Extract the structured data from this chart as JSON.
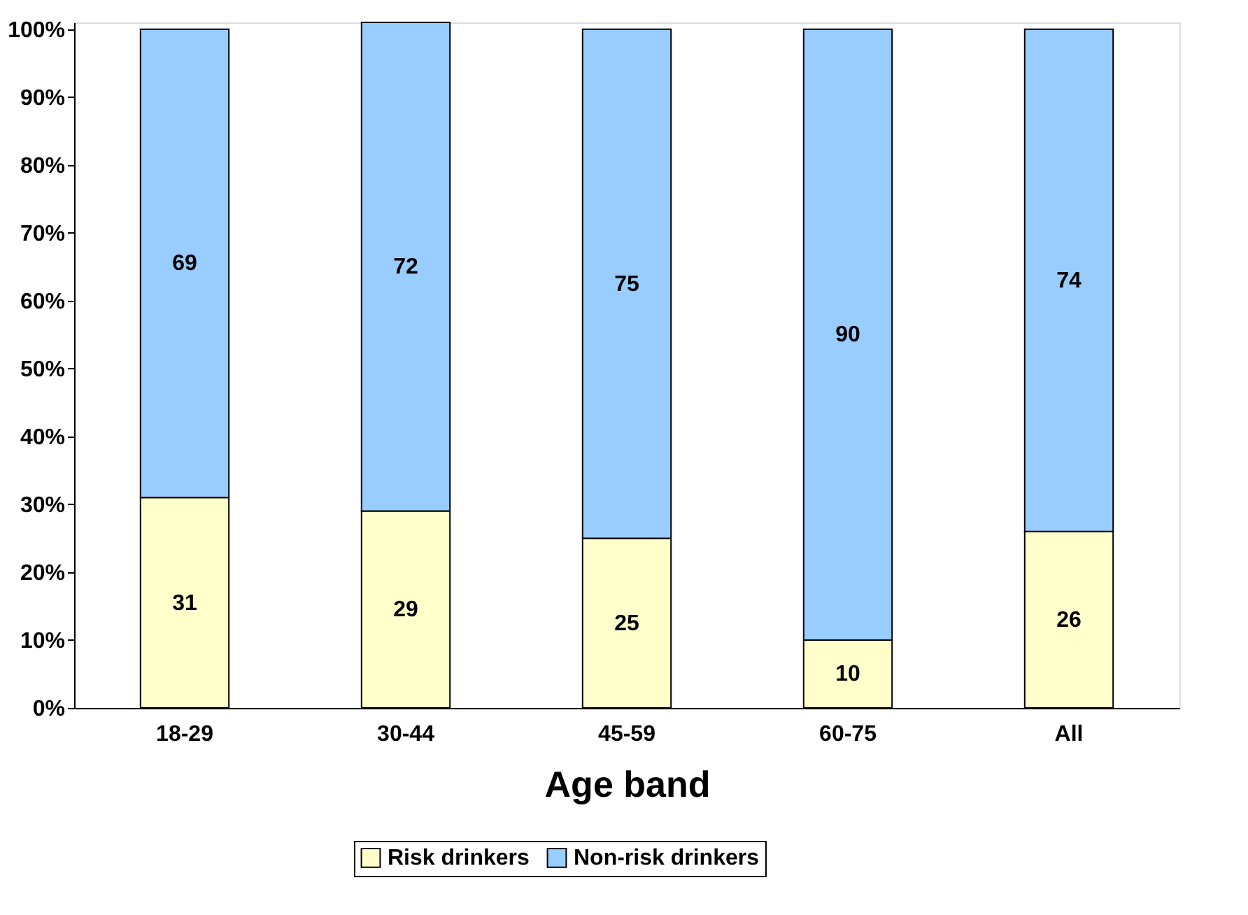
{
  "chart_data": {
    "type": "bar",
    "stacked": true,
    "xlabel": "Age band",
    "categories": [
      "18-29",
      "30-44",
      "45-59",
      "60-75",
      "All"
    ],
    "series": [
      {
        "name": "Risk drinkers",
        "color": "#ffffcc",
        "values": [
          31,
          29,
          25,
          10,
          26
        ]
      },
      {
        "name": "Non-risk drinkers",
        "color": "#99ccff",
        "values": [
          69,
          72,
          75,
          90,
          74
        ]
      }
    ],
    "ylim": [
      0,
      101
    ],
    "yticks": [
      {
        "value": 0,
        "label": "0%"
      },
      {
        "value": 10,
        "label": "10%"
      },
      {
        "value": 20,
        "label": "20%"
      },
      {
        "value": 30,
        "label": "30%"
      },
      {
        "value": 40,
        "label": "40%"
      },
      {
        "value": 50,
        "label": "50%"
      },
      {
        "value": 60,
        "label": "60%"
      },
      {
        "value": 70,
        "label": "70%"
      },
      {
        "value": 80,
        "label": "80%"
      },
      {
        "value": 90,
        "label": "90%"
      },
      {
        "value": 100,
        "label": "100%"
      }
    ],
    "data_labels": true,
    "legend": "bottom",
    "grid": false
  }
}
